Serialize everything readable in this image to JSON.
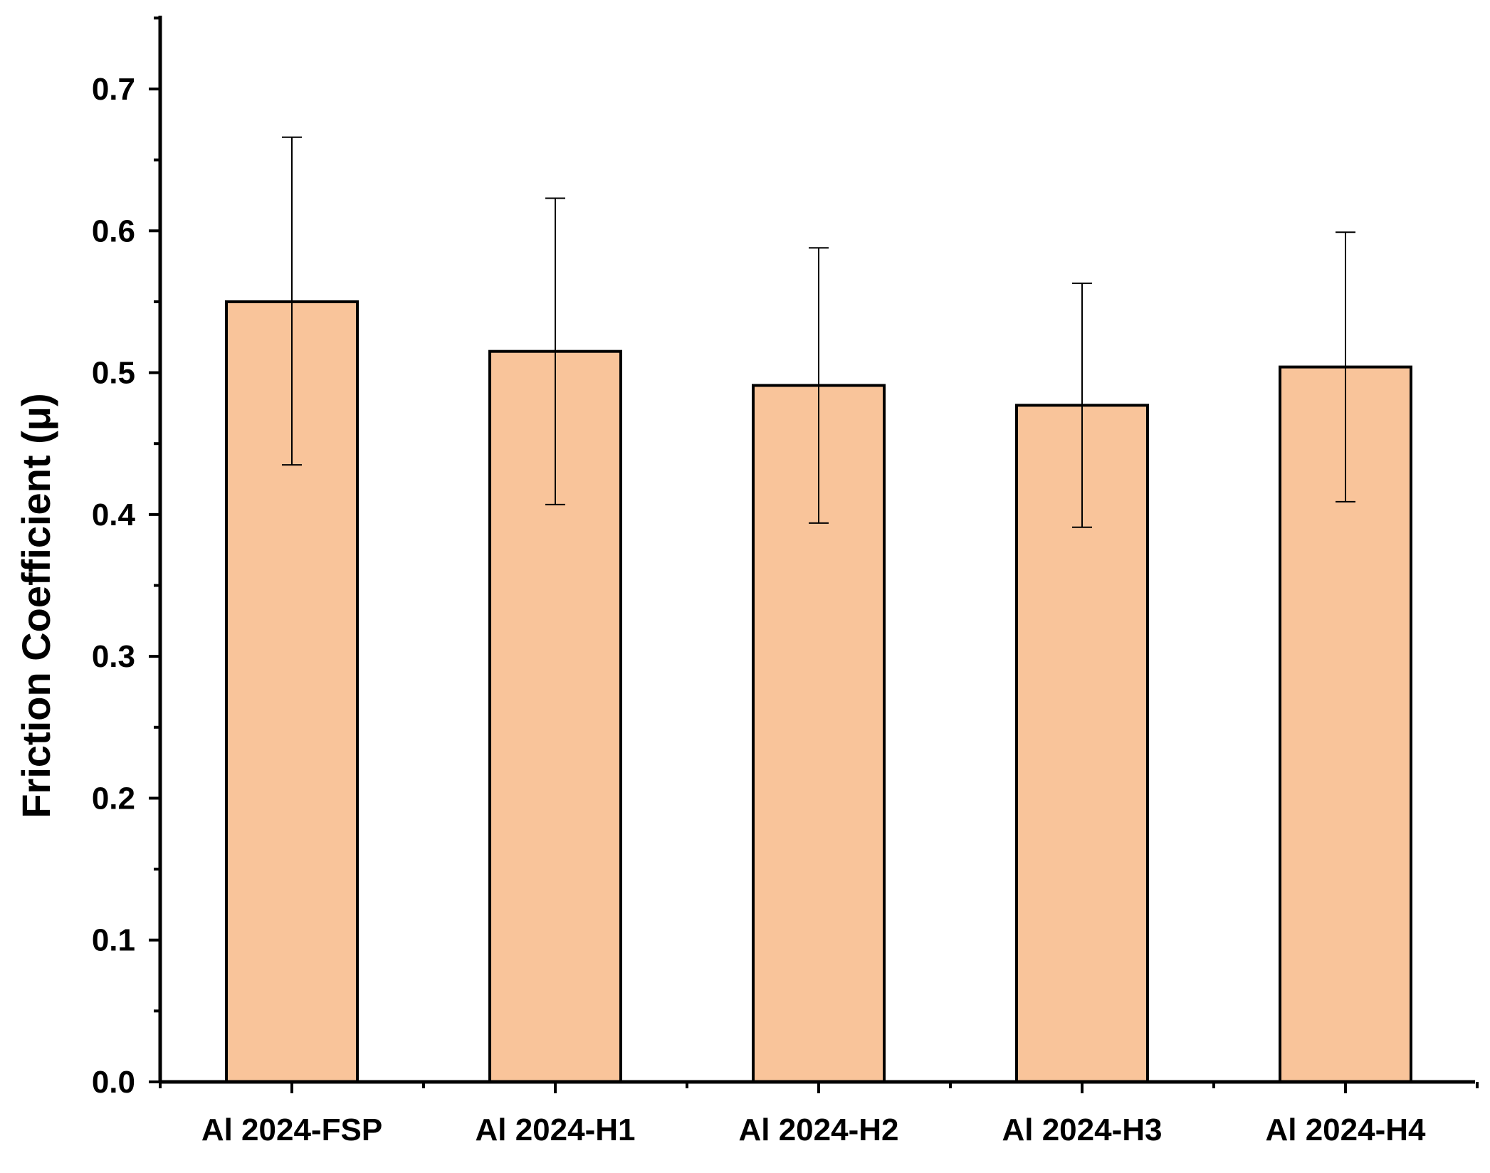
{
  "chart_data": {
    "type": "bar",
    "title": "",
    "xlabel": "",
    "ylabel": "Friction Coefficient (μ)",
    "categories": [
      "Al 2024-FSP",
      "Al 2024-H1",
      "Al 2024-H2",
      "Al 2024-H3",
      "Al 2024-H4"
    ],
    "values": [
      0.55,
      0.515,
      0.491,
      0.477,
      0.504
    ],
    "error_low": [
      0.435,
      0.407,
      0.394,
      0.391,
      0.409
    ],
    "error_high": [
      0.666,
      0.623,
      0.588,
      0.563,
      0.599
    ],
    "ylim": [
      0,
      0.75
    ],
    "yticks": [
      0.0,
      0.1,
      0.2,
      0.3,
      0.4,
      0.5,
      0.6,
      0.7
    ],
    "ytick_labels": [
      "0.0",
      "0.1",
      "0.2",
      "0.3",
      "0.4",
      "0.5",
      "0.6",
      "0.7"
    ],
    "grid": false,
    "bar_color": "#f9c49a",
    "edge_color": "#000000"
  }
}
